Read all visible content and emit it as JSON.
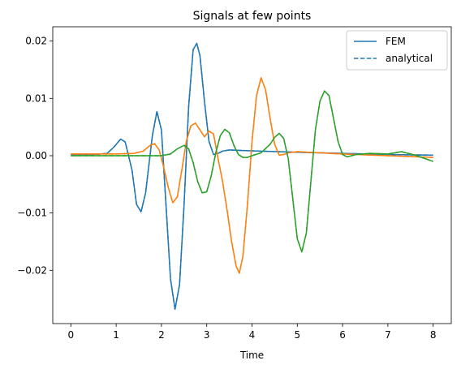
{
  "chart_data": {
    "type": "line",
    "title": "Signals at few points",
    "xlabel": "Time",
    "ylabel": "",
    "xlim": [
      -0.4,
      8.4
    ],
    "ylim": [
      -0.0293,
      0.0225
    ],
    "xticks": [
      0,
      1,
      2,
      3,
      4,
      5,
      6,
      7,
      8
    ],
    "yticks": [
      -0.02,
      -0.01,
      0.0,
      0.01,
      0.02
    ],
    "ytick_labels": [
      "−0.02",
      "−0.01",
      "0.00",
      "0.01",
      "0.02"
    ],
    "grid": false,
    "legend": {
      "placement": "top-right",
      "entries": [
        {
          "label": "FEM",
          "style": "solid",
          "color": "#1f77b4"
        },
        {
          "label": "analytical",
          "style": "dashed",
          "color": "#1f77b4"
        }
      ]
    },
    "series": [
      {
        "color": "#1f77b4",
        "x": [
          0,
          0.5,
          0.8,
          0.95,
          1.1,
          1.2,
          1.35,
          1.45,
          1.55,
          1.65,
          1.8,
          1.9,
          2.0,
          2.1,
          2.2,
          2.3,
          2.4,
          2.5,
          2.6,
          2.7,
          2.78,
          2.85,
          2.95,
          3.05,
          3.15,
          3.25,
          3.35,
          3.5,
          3.8,
          4.2,
          5.0,
          6.0,
          7.0,
          8.0
        ],
        "y": [
          0.0002,
          0.0002,
          0.0004,
          0.0015,
          0.0029,
          0.0024,
          -0.0025,
          -0.0085,
          -0.0098,
          -0.0065,
          0.0035,
          0.0077,
          0.0045,
          -0.0085,
          -0.0215,
          -0.0268,
          -0.0225,
          -0.0085,
          0.0085,
          0.0185,
          0.0196,
          0.0175,
          0.0095,
          0.0025,
          0.0002,
          0.0004,
          0.0008,
          0.001,
          0.0009,
          0.0008,
          0.0006,
          0.0004,
          0.0002,
          0.0001
        ]
      },
      {
        "color": "#ff7f0e",
        "x": [
          0,
          1.0,
          1.4,
          1.6,
          1.75,
          1.85,
          1.95,
          2.05,
          2.15,
          2.25,
          2.35,
          2.45,
          2.55,
          2.65,
          2.75,
          2.85,
          2.95,
          3.05,
          3.15,
          3.25,
          3.35,
          3.45,
          3.55,
          3.65,
          3.72,
          3.8,
          3.9,
          4.0,
          4.1,
          4.2,
          4.3,
          4.4,
          4.5,
          4.6,
          4.7,
          4.8,
          5.0,
          5.5,
          6.0,
          7.0,
          8.0
        ],
        "y": [
          0.0003,
          0.0003,
          0.0004,
          0.0008,
          0.0018,
          0.0021,
          0.001,
          -0.002,
          -0.0055,
          -0.0082,
          -0.0072,
          -0.0025,
          0.0025,
          0.0052,
          0.0057,
          0.0045,
          0.0033,
          0.0043,
          0.0038,
          -0.0005,
          -0.0045,
          -0.0095,
          -0.015,
          -0.0193,
          -0.0205,
          -0.0175,
          -0.0085,
          0.0025,
          0.0105,
          0.0136,
          0.0115,
          0.0065,
          0.002,
          0.0001,
          0.0002,
          0.0005,
          0.0007,
          0.0005,
          0.0003,
          0.0,
          -0.0003
        ]
      },
      {
        "color": "#2ca02c",
        "x": [
          0,
          1.0,
          2.0,
          2.2,
          2.35,
          2.5,
          2.6,
          2.7,
          2.8,
          2.9,
          3.0,
          3.1,
          3.2,
          3.3,
          3.4,
          3.5,
          3.6,
          3.7,
          3.8,
          3.9,
          4.0,
          4.2,
          4.4,
          4.5,
          4.6,
          4.7,
          4.8,
          4.9,
          5.0,
          5.1,
          5.2,
          5.3,
          5.4,
          5.5,
          5.6,
          5.7,
          5.8,
          5.9,
          6.0,
          6.1,
          6.3,
          6.6,
          7.0,
          7.3,
          7.6,
          8.0
        ],
        "y": [
          0.0,
          0.0,
          0.0,
          0.0003,
          0.0012,
          0.0018,
          0.0012,
          -0.0012,
          -0.0045,
          -0.0065,
          -0.0063,
          -0.0035,
          0.0005,
          0.0035,
          0.0046,
          0.004,
          0.0018,
          0.0002,
          -0.0003,
          -0.0003,
          0.0,
          0.0005,
          0.002,
          0.0032,
          0.0039,
          0.003,
          -0.0005,
          -0.0075,
          -0.0145,
          -0.0168,
          -0.0135,
          -0.0045,
          0.0045,
          0.0095,
          0.0113,
          0.0105,
          0.0065,
          0.0025,
          0.0002,
          -0.0002,
          0.0002,
          0.0004,
          0.0003,
          0.0007,
          0.0001,
          -0.001
        ]
      }
    ]
  }
}
